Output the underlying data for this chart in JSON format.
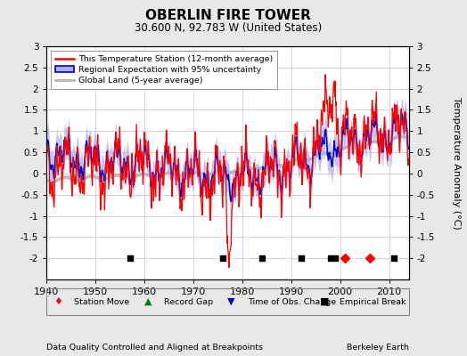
{
  "title": "OBERLIN FIRE TOWER",
  "subtitle": "30.600 N, 92.783 W (United States)",
  "ylabel": "Temperature Anomaly (°C)",
  "xlabel_left": "Data Quality Controlled and Aligned at Breakpoints",
  "xlabel_right": "Berkeley Earth",
  "xmin": 1940,
  "xmax": 2014,
  "ymin": -2.5,
  "ymax": 3.0,
  "yticks": [
    -2,
    -1.5,
    -1,
    -0.5,
    0,
    0.5,
    1,
    1.5,
    2,
    2.5,
    3
  ],
  "xticks": [
    1940,
    1950,
    1960,
    1970,
    1980,
    1990,
    2000,
    2010
  ],
  "bg_color": "#e8e8e8",
  "plot_bg_color": "#ffffff",
  "grid_color": "#c8c8c8",
  "station_color": "#ff0000",
  "regional_color": "#0000cc",
  "regional_fill_color": "#aaaaee",
  "global_color": "#bbbbbb",
  "empirical_break_years": [
    1957,
    1976,
    1984,
    1992,
    1998,
    1999,
    2011
  ],
  "station_move_years": [
    2001,
    2006
  ],
  "time_obs_change_years": [],
  "record_gap_years": [],
  "marker_y": -2.0
}
